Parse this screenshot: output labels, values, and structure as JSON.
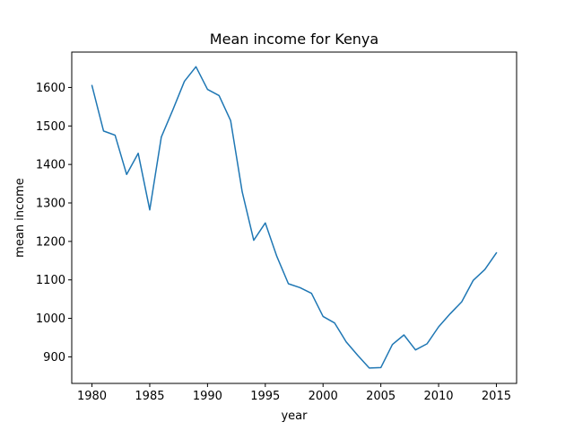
{
  "chart_data": {
    "type": "line",
    "title": "Mean income for Kenya",
    "xlabel": "year",
    "ylabel": "mean income",
    "xlim": [
      1978.25,
      2016.75
    ],
    "ylim": [
      831,
      1692
    ],
    "xticks": [
      1980,
      1985,
      1990,
      1995,
      2000,
      2005,
      2010,
      2015
    ],
    "yticks": [
      900,
      1000,
      1100,
      1200,
      1300,
      1400,
      1500,
      1600
    ],
    "grid": false,
    "legend": "none",
    "series_color": "#1f77b4",
    "x": [
      1980,
      1981,
      1982,
      1983,
      1984,
      1985,
      1986,
      1987,
      1988,
      1989,
      1990,
      1991,
      1992,
      1993,
      1994,
      1995,
      1996,
      1997,
      1998,
      1999,
      2000,
      2001,
      2002,
      2003,
      2004,
      2005,
      2006,
      2007,
      2008,
      2009,
      2010,
      2011,
      2012,
      2013,
      2014,
      2015
    ],
    "series": [
      {
        "values": [
          1605,
          1487,
          1476,
          1374,
          1429,
          1282,
          1471,
          1542,
          1616,
          1654,
          1595,
          1579,
          1514,
          1329,
          1203,
          1248,
          1161,
          1090,
          1080,
          1065,
          1005,
          988,
          939,
          904,
          871,
          872,
          932,
          957,
          918,
          934,
          978,
          1012,
          1043,
          1099,
          1127,
          1170
        ]
      }
    ]
  }
}
